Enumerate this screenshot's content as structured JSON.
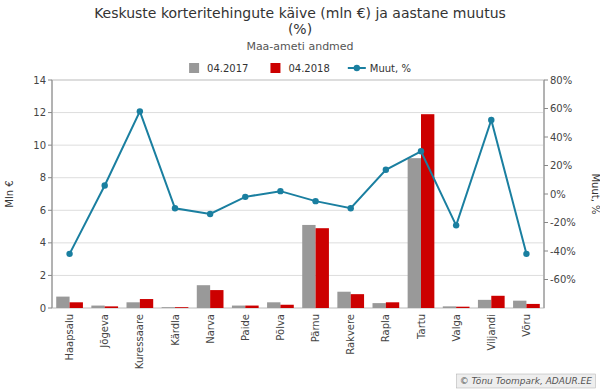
{
  "chart_data": {
    "type": "bar",
    "title": "Keskuste korteritehingute käive (mln €) ja aastane muutus\n(%)",
    "subtitle": "Maa-ameti andmed",
    "ylabel": "Mln €",
    "y2label": "Muut, %",
    "annotations": [
      "© Tõnu Toompark, ADAUR.EE"
    ],
    "categories": [
      "Haapsalu",
      "Jõgeva",
      "Kuressaare",
      "Kärdla",
      "Narva",
      "Paide",
      "Põlva",
      "Pärnu",
      "Rakvere",
      "Rapla",
      "Tartu",
      "Valga",
      "Viljandi",
      "Võru"
    ],
    "series": [
      {
        "name": "04.2017",
        "type": "bar",
        "color": "#999999",
        "values": [
          0.7,
          0.15,
          0.35,
          0.05,
          1.4,
          0.15,
          0.35,
          5.1,
          1.0,
          0.3,
          9.2,
          0.1,
          0.5,
          0.45
        ]
      },
      {
        "name": "04.2018",
        "type": "bar",
        "color": "#cc0000",
        "values": [
          0.35,
          0.1,
          0.55,
          0.05,
          1.1,
          0.15,
          0.2,
          4.9,
          0.85,
          0.35,
          11.9,
          0.08,
          0.75,
          0.25
        ]
      },
      {
        "name": "Muut, %",
        "type": "line",
        "axis": "y2",
        "color": "#1a7fa0",
        "marker": "circle",
        "line_style": "solid",
        "values": [
          -42,
          6,
          58,
          -10,
          -14,
          -2,
          2,
          -5,
          -10,
          17,
          30,
          -22,
          52,
          -42
        ]
      }
    ],
    "ylim": [
      0,
      14
    ],
    "yticks": [
      0,
      2,
      4,
      6,
      8,
      10,
      12,
      14
    ],
    "y2lim": [
      -80,
      80
    ],
    "y2ticks": [
      {
        "value": -60,
        "label": "-60%"
      },
      {
        "value": -40,
        "label": "-40%"
      },
      {
        "value": -20,
        "label": "-20%"
      },
      {
        "value": 0,
        "label": "0%"
      },
      {
        "value": 20,
        "label": "20%"
      },
      {
        "value": 40,
        "label": "40%"
      },
      {
        "value": 60,
        "label": "60%"
      },
      {
        "value": 80,
        "label": "80%"
      }
    ],
    "grid": true,
    "legend": "top"
  }
}
